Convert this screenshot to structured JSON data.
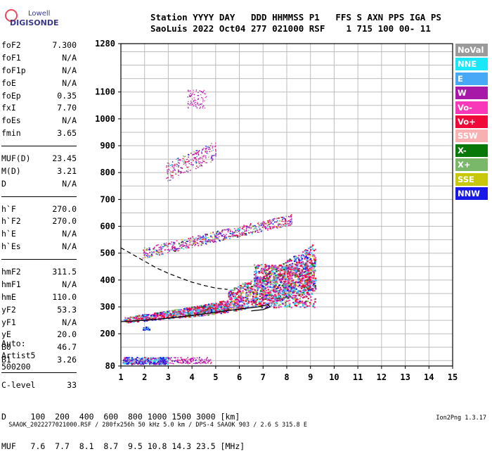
{
  "brand": {
    "line1": "Lowell",
    "line2": "DIGISONDE"
  },
  "header": {
    "line1": "Station YYYY DAY   DDD HHMMSS P1   FFS S AXN PPS IGA PS",
    "line2": "SaoLuis 2022 Oct04 277 021000 RSF    1 715 100 00- 11"
  },
  "params": [
    {
      "name": "foF2",
      "value": "7.300"
    },
    {
      "name": "foF1",
      "value": "N/A"
    },
    {
      "name": "foF1p",
      "value": "N/A"
    },
    {
      "name": "foE",
      "value": "N/A"
    },
    {
      "name": "foEp",
      "value": "0.35"
    },
    {
      "name": "fxI",
      "value": "7.70"
    },
    {
      "name": "foEs",
      "value": "N/A"
    },
    {
      "name": "fmin",
      "value": "3.65"
    },
    {
      "sep": true
    },
    {
      "name": "MUF(D)",
      "value": "23.45"
    },
    {
      "name": "M(D)",
      "value": "3.21"
    },
    {
      "name": "D",
      "value": "N/A"
    },
    {
      "sep": true
    },
    {
      "name": "h`F",
      "value": "270.0"
    },
    {
      "name": "h`F2",
      "value": "270.0"
    },
    {
      "name": "h`E",
      "value": "N/A"
    },
    {
      "name": "h`Es",
      "value": "N/A"
    },
    {
      "sep": true
    },
    {
      "name": "hmF2",
      "value": "311.5"
    },
    {
      "name": "hmF1",
      "value": "N/A"
    },
    {
      "name": "hmE",
      "value": "110.0"
    },
    {
      "name": "yF2",
      "value": "53.3"
    },
    {
      "name": "yF1",
      "value": "N/A"
    },
    {
      "name": "yE",
      "value": "20.0"
    },
    {
      "name": "B0",
      "value": "46.7"
    },
    {
      "name": "B1",
      "value": "3.26"
    },
    {
      "sep": true
    },
    {
      "name": "C-level",
      "value": "33"
    }
  ],
  "autoscale": {
    "line1": "Auto:",
    "line2": "Artist5",
    "line3": "500200"
  },
  "legend": [
    {
      "label": "NoVal",
      "color": "#9a9a9a"
    },
    {
      "label": "NNE",
      "color": "#18e8f8"
    },
    {
      "label": "E",
      "color": "#48a8f8"
    },
    {
      "label": "W",
      "color": "#a818a8"
    },
    {
      "label": "Vo-",
      "color": "#f838b8"
    },
    {
      "label": "Vo+",
      "color": "#f00838"
    },
    {
      "label": "SSW",
      "color": "#f8b0b0"
    },
    {
      "label": "X-",
      "color": "#087808"
    },
    {
      "label": "X+",
      "color": "#78b868"
    },
    {
      "label": "SSE",
      "color": "#c8c808"
    },
    {
      "label": "NNW",
      "color": "#1818e8"
    }
  ],
  "dmuf": {
    "d_line": "D     100  200  400  600  800 1000 1500 3000 [km]",
    "muf_line": "MUF   7.6  7.7  8.1  8.7  9.5 10.8 14.3 23.5 [MHz]"
  },
  "footer": {
    "left": "SAAOK_2022277021000.RSF / 280fx256h 50 kHz 5.0 km / DPS-4 SAAOK 903 / 2.6 S 315.8 E",
    "right": "Ion2Png 1.3.17"
  },
  "chart_data": {
    "type": "scatter",
    "title": "",
    "xlabel": "",
    "ylabel": "",
    "xlim": [
      1,
      15
    ],
    "ylim": [
      80,
      1280
    ],
    "x_ticks": [
      "1",
      "2",
      "3",
      "4",
      "5",
      "6",
      "7",
      "8",
      "9",
      "10",
      "11",
      "12",
      "13",
      "14",
      "15"
    ],
    "y_ticks": [
      "80",
      "200",
      "300",
      "400",
      "500",
      "600",
      "700",
      "800",
      "900",
      "1000",
      "1100",
      "1280"
    ],
    "grid": true,
    "traces": [
      {
        "name": "F2 O-trace",
        "x_range": [
          1.0,
          9.2
        ],
        "height_range": [
          240,
          520
        ]
      },
      {
        "name": "F2 second hop",
        "x_range": [
          1.9,
          8.2
        ],
        "height_range": [
          490,
          700
        ]
      },
      {
        "name": "F2 third hop",
        "x_range": [
          2.9,
          5.0
        ],
        "height_range": [
          760,
          880
        ]
      },
      {
        "name": "E-region echoes",
        "x_range": [
          1.0,
          4.8
        ],
        "height_range": [
          88,
          115
        ]
      }
    ],
    "profile_curve": [
      [
        1.0,
        245
      ],
      [
        2,
        250
      ],
      [
        3,
        258
      ],
      [
        4,
        268
      ],
      [
        5,
        280
      ],
      [
        6,
        292
      ],
      [
        6.8,
        300
      ],
      [
        7.2,
        308
      ],
      [
        7.3,
        300
      ],
      [
        7.0,
        290
      ],
      [
        6.5,
        285
      ]
    ],
    "dashed_curve": [
      [
        1.0,
        520
      ],
      [
        1.5,
        495
      ],
      [
        2,
        470
      ],
      [
        2.5,
        445
      ],
      [
        3,
        425
      ],
      [
        3.5,
        408
      ],
      [
        4,
        392
      ],
      [
        4.5,
        380
      ],
      [
        5,
        370
      ],
      [
        5.5,
        365
      ]
    ]
  }
}
